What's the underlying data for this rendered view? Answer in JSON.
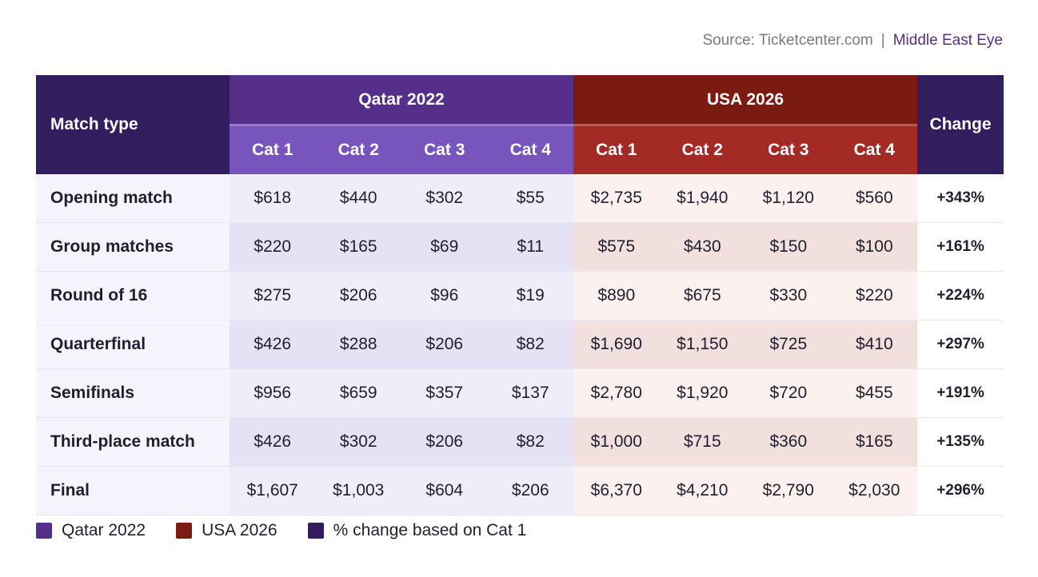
{
  "source": {
    "text": "Source: Ticketcenter.com",
    "separator": "|",
    "brand": "Middle East Eye"
  },
  "colors": {
    "qatar": "#552f8a",
    "usa": "#7b1a11",
    "change": "#321d5f"
  },
  "chart_data": {
    "type": "table",
    "header": {
      "match_type": "Match type",
      "change": "Change",
      "groups": [
        "Qatar 2022",
        "USA 2026"
      ],
      "categories": [
        "Cat 1",
        "Cat 2",
        "Cat 3",
        "Cat 4"
      ]
    },
    "rows": [
      {
        "match": "Opening match",
        "qatar": [
          "$618",
          "$440",
          "$302",
          "$55"
        ],
        "usa": [
          "$2,735",
          "$1,940",
          "$1,120",
          "$560"
        ],
        "change": "+343%"
      },
      {
        "match": "Group matches",
        "qatar": [
          "$220",
          "$165",
          "$69",
          "$11"
        ],
        "usa": [
          "$575",
          "$430",
          "$150",
          "$100"
        ],
        "change": "+161%"
      },
      {
        "match": "Round of 16",
        "qatar": [
          "$275",
          "$206",
          "$96",
          "$19"
        ],
        "usa": [
          "$890",
          "$675",
          "$330",
          "$220"
        ],
        "change": "+224%"
      },
      {
        "match": "Quarterfinal",
        "qatar": [
          "$426",
          "$288",
          "$206",
          "$82"
        ],
        "usa": [
          "$1,690",
          "$1,150",
          "$725",
          "$410"
        ],
        "change": "+297%"
      },
      {
        "match": "Semifinals",
        "qatar": [
          "$956",
          "$659",
          "$357",
          "$137"
        ],
        "usa": [
          "$2,780",
          "$1,920",
          "$720",
          "$455"
        ],
        "change": "+191%"
      },
      {
        "match": "Third-place match",
        "qatar": [
          "$426",
          "$302",
          "$206",
          "$82"
        ],
        "usa": [
          "$1,000",
          "$715",
          "$360",
          "$165"
        ],
        "change": "+135%"
      },
      {
        "match": "Final",
        "qatar": [
          "$1,607",
          "$1,003",
          "$604",
          "$206"
        ],
        "usa": [
          "$6,370",
          "$4,210",
          "$2,790",
          "$2,030"
        ],
        "change": "+296%"
      }
    ],
    "legend": [
      "Qatar 2022",
      "USA 2026",
      "% change based on Cat 1"
    ]
  }
}
